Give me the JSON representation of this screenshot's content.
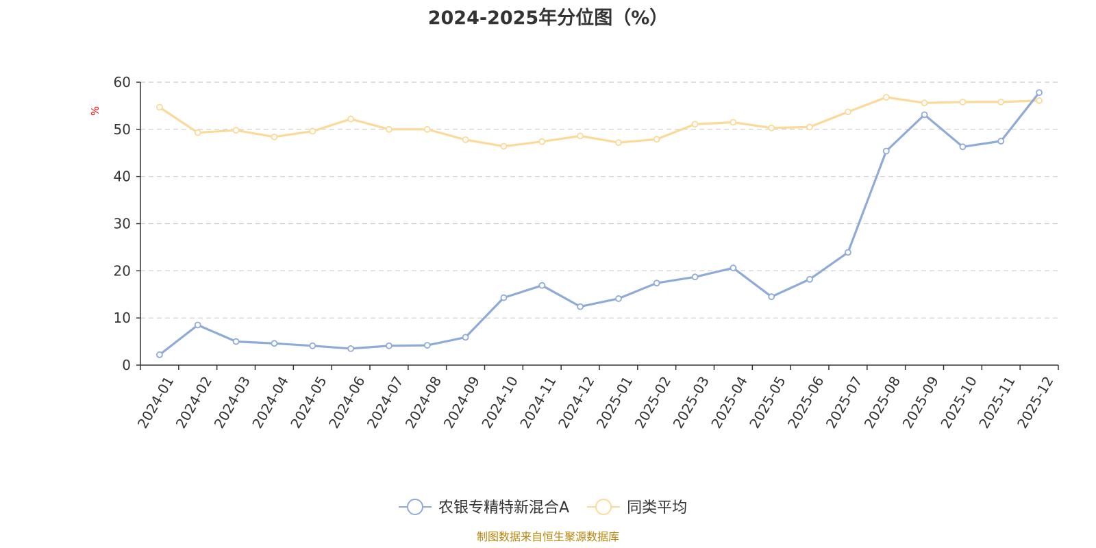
{
  "chart_data": {
    "type": "line",
    "title": "2024-2025年分位图（%）",
    "ylabel": "%",
    "ylim": [
      0,
      60
    ],
    "yticks": [
      0,
      10,
      20,
      30,
      40,
      50,
      60
    ],
    "grid": true,
    "legend_position": "bottom-center",
    "categories": [
      "2024-01",
      "2024-02",
      "2024-03",
      "2024-04",
      "2024-05",
      "2024-06",
      "2024-07",
      "2024-08",
      "2024-09",
      "2024-10",
      "2024-11",
      "2024-12",
      "2025-01",
      "2025-02",
      "2025-03",
      "2025-04",
      "2025-05",
      "2025-06",
      "2025-07",
      "2025-08",
      "2025-09",
      "2025-10",
      "2025-11",
      "2025-12"
    ],
    "series": [
      {
        "name": "农银专精特新混合A",
        "color": "#8eabd8",
        "values": [
          2.2,
          8.5,
          5.0,
          4.6,
          4.1,
          3.5,
          4.1,
          4.2,
          5.9,
          14.3,
          16.9,
          12.4,
          14.1,
          17.4,
          18.7,
          20.6,
          14.5,
          18.2,
          23.9,
          45.4,
          53.1,
          46.3,
          47.5,
          57.8
        ]
      },
      {
        "name": "同类平均",
        "color": "#fbd998",
        "values": [
          54.7,
          49.3,
          49.8,
          48.4,
          49.6,
          52.2,
          50.0,
          50.0,
          47.8,
          46.4,
          47.4,
          48.6,
          47.2,
          47.9,
          51.1,
          51.5,
          50.3,
          50.5,
          53.7,
          56.8,
          55.6,
          55.8,
          55.8,
          56.1
        ]
      }
    ]
  },
  "source_note": "制图数据来自恒生聚源数据库",
  "colors": {
    "axis": "#333333",
    "grid": "#cccccc",
    "ylabel": "#ff0000",
    "source_note": "#b8860b"
  }
}
